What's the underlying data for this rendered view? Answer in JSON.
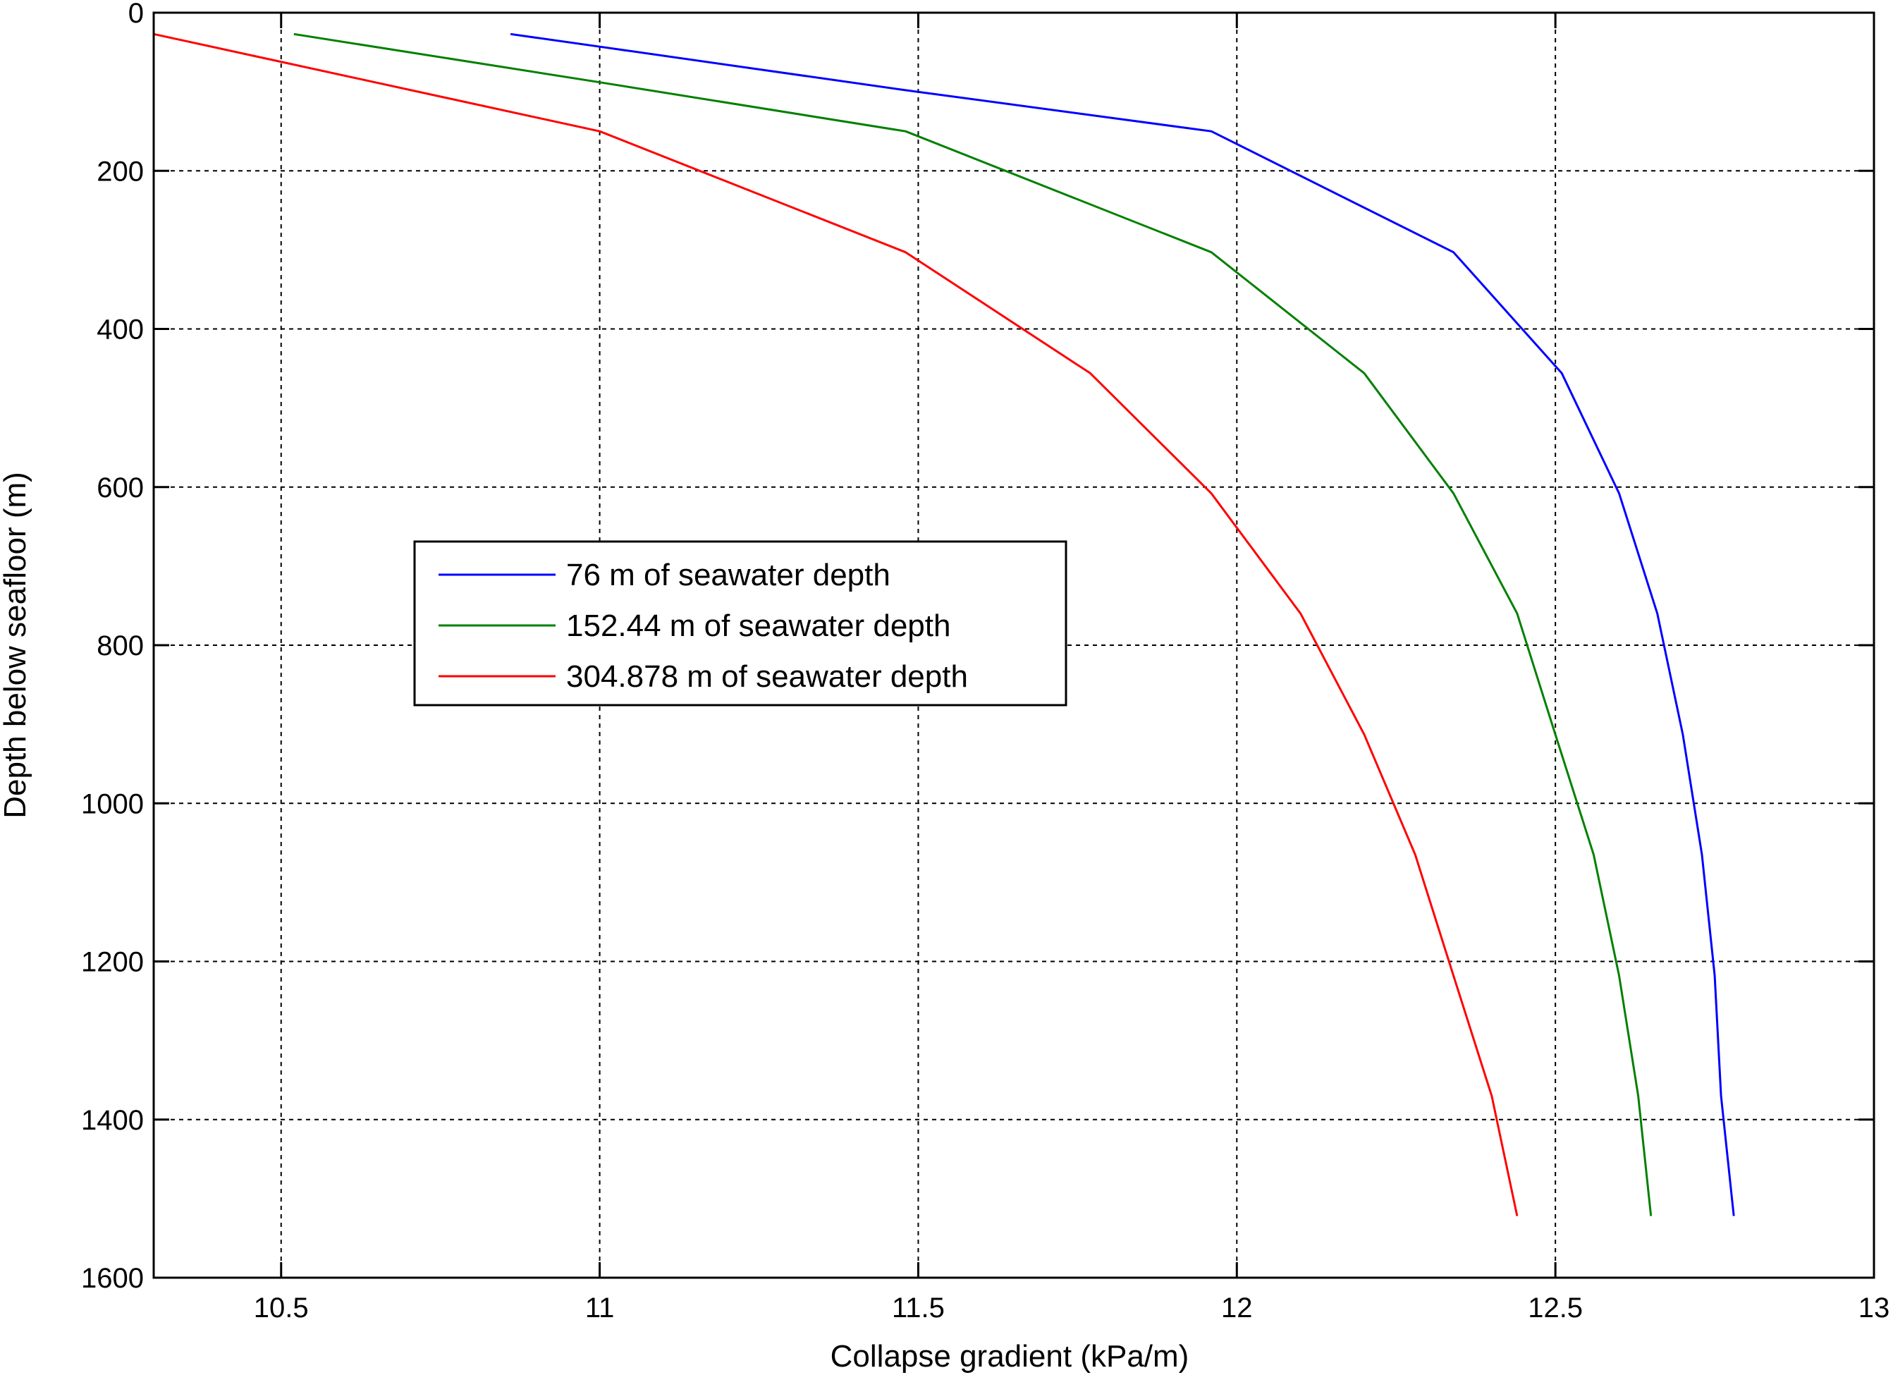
{
  "chart_data": {
    "type": "line",
    "title": "",
    "xlabel": "Collapse gradient (kPa/m)",
    "ylabel": "Depth below seafloor (m)",
    "xlim": [
      10.3,
      13
    ],
    "ylim": [
      0,
      1600
    ],
    "y_reversed": true,
    "x_ticks": [
      10.5,
      11,
      11.5,
      12,
      12.5,
      13
    ],
    "x_tick_labels": [
      "10.5",
      "11",
      "11.5",
      "12",
      "12.5",
      "13"
    ],
    "y_ticks": [
      0,
      200,
      400,
      600,
      800,
      1000,
      1200,
      1400,
      1600
    ],
    "y_tick_labels": [
      "0",
      "200",
      "400",
      "600",
      "800",
      "1000",
      "1200",
      "1400",
      "1600"
    ],
    "grid": true,
    "legend_position": "center-left",
    "series": [
      {
        "name": "76 m of seawater depth",
        "color": "#0000ff",
        "x": [
          10.86,
          11.0,
          11.48,
          11.96,
          12.34,
          12.51,
          12.6,
          12.66,
          12.7,
          12.73,
          12.75,
          12.76,
          12.78
        ],
        "y": [
          27,
          43,
          98,
          150,
          303,
          456,
          608,
          760,
          913,
          1065,
          1218,
          1370,
          1522
        ]
      },
      {
        "name": "152.44 m of seawater depth",
        "color": "#008000",
        "x": [
          10.52,
          11.0,
          11.48,
          11.96,
          12.2,
          12.34,
          12.44,
          12.5,
          12.56,
          12.6,
          12.63,
          12.65
        ],
        "y": [
          27,
          88,
          150,
          303,
          456,
          608,
          760,
          913,
          1065,
          1218,
          1370,
          1522
        ]
      },
      {
        "name": "304.878 m of seawater depth",
        "color": "#ff0000",
        "x": [
          10.3,
          11.0,
          11.48,
          11.77,
          11.96,
          12.1,
          12.2,
          12.28,
          12.34,
          12.4,
          12.44
        ],
        "y": [
          27,
          150,
          303,
          456,
          608,
          760,
          913,
          1065,
          1218,
          1370,
          1522
        ]
      }
    ]
  }
}
